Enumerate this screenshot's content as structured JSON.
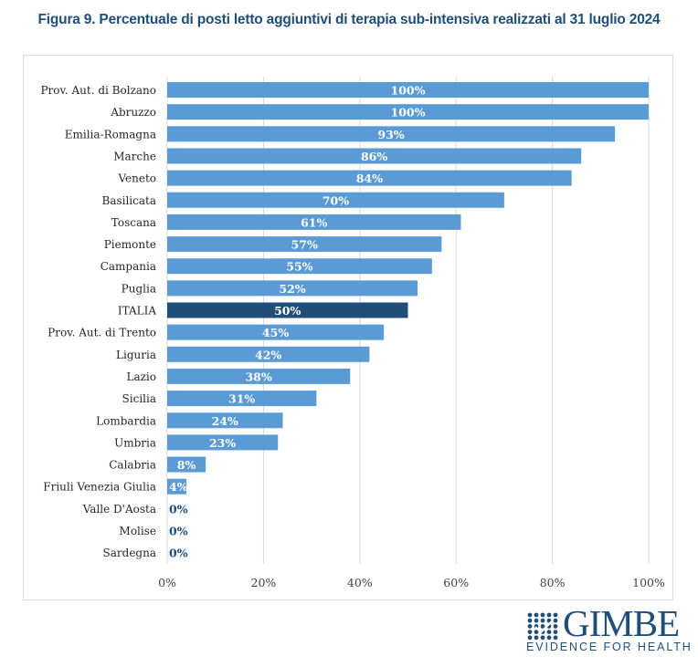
{
  "header": {
    "title": "Figura 9. Percentuale di posti letto aggiuntivi di terapia sub-intensiva realizzati al 31 luglio 2024"
  },
  "colors": {
    "bar": "#5B9BD5",
    "highlight": "#1F4E79",
    "label_inside": "#ffffff",
    "label_outside": "#1F4E79",
    "grid": "#d9d9d9"
  },
  "logo": {
    "name": "GIMBE",
    "tagline": "EVIDENCE FOR HEALTH"
  },
  "chart_data": {
    "type": "bar",
    "orientation": "horizontal",
    "title": "Figura 9. Percentuale di posti letto aggiuntivi di terapia sub-intensiva realizzati al 31 luglio 2024",
    "xlabel": "",
    "ylabel": "",
    "xlim": [
      0,
      100
    ],
    "grid": true,
    "x_ticks": [
      "0%",
      "20%",
      "40%",
      "60%",
      "80%",
      "100%"
    ],
    "x_tick_values": [
      0,
      20,
      40,
      60,
      80,
      100
    ],
    "highlight_category": "ITALIA",
    "categories": [
      "Prov. Aut. di Bolzano",
      "Abruzzo",
      "Emilia-Romagna",
      "Marche",
      "Veneto",
      "Basilicata",
      "Toscana",
      "Piemonte",
      "Campania",
      "Puglia",
      "ITALIA",
      "Prov. Aut. di Trento",
      "Liguria",
      "Lazio",
      "Sicilia",
      "Lombardia",
      "Umbria",
      "Calabria",
      "Friuli Venezia Giulia",
      "Valle D'Aosta",
      "Molise",
      "Sardegna"
    ],
    "values": [
      100,
      100,
      93,
      86,
      84,
      70,
      61,
      57,
      55,
      52,
      50,
      45,
      42,
      38,
      31,
      24,
      23,
      8,
      4,
      0,
      0,
      0
    ],
    "labels": [
      "100%",
      "100%",
      "93%",
      "86%",
      "84%",
      "70%",
      "61%",
      "57%",
      "55%",
      "52%",
      "50%",
      "45%",
      "42%",
      "38%",
      "31%",
      "24%",
      "23%",
      "8%",
      "4%",
      "0%",
      "0%",
      "0%"
    ]
  }
}
